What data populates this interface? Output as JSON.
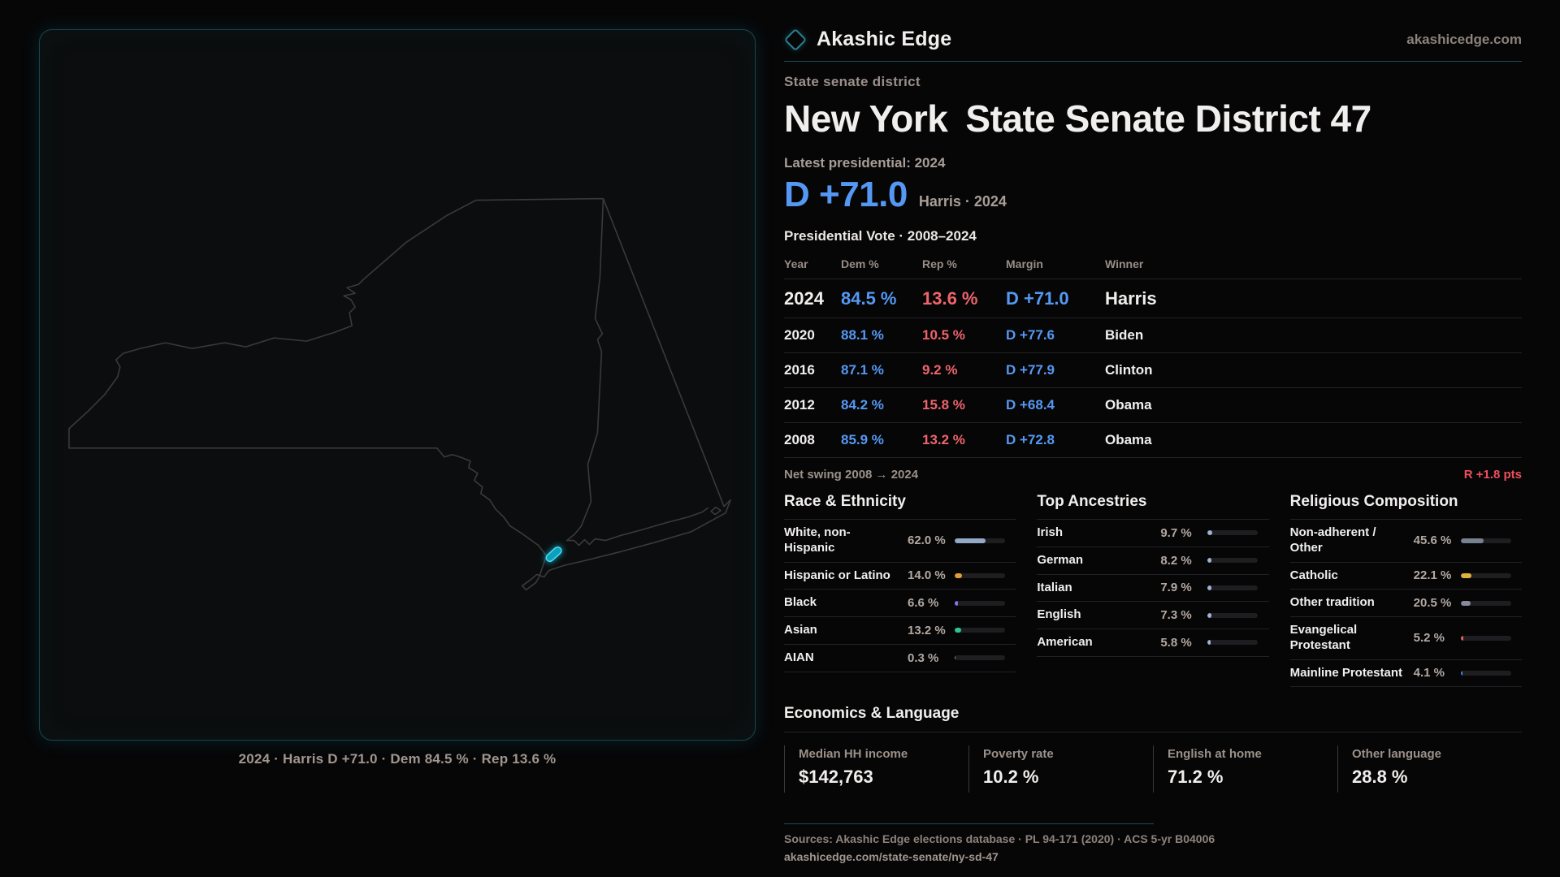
{
  "brand": {
    "name": "Akashic Edge",
    "domain": "akashicedge.com"
  },
  "map": {
    "caption": "2024 · Harris D +71.0 · Dem 84.5 % · Rep 13.6 %",
    "district_fill": "#0c9fbe",
    "district_stroke": "#49dff2",
    "outline_color": "#3a3a3d"
  },
  "header": {
    "eyebrow": "State senate district",
    "title_part1": "New York",
    "title_part2": "State Senate District 47"
  },
  "latest": {
    "label": "Latest presidential: 2024",
    "margin": "D +71.0",
    "winner_note": "Harris · 2024"
  },
  "table": {
    "title": "Presidential Vote · 2008–2024",
    "columns": [
      "Year",
      "Dem %",
      "Rep %",
      "Margin",
      "Winner"
    ],
    "rows": [
      {
        "year": "2024",
        "dem": "84.5 %",
        "rep": "13.6 %",
        "margin": "D +71.0",
        "winner": "Harris",
        "featured": true
      },
      {
        "year": "2020",
        "dem": "88.1 %",
        "rep": "10.5 %",
        "margin": "D +77.6",
        "winner": "Biden",
        "featured": false
      },
      {
        "year": "2016",
        "dem": "87.1 %",
        "rep": "9.2 %",
        "margin": "D +77.9",
        "winner": "Clinton",
        "featured": false
      },
      {
        "year": "2012",
        "dem": "84.2 %",
        "rep": "15.8 %",
        "margin": "D +68.4",
        "winner": "Obama",
        "featured": false
      },
      {
        "year": "2008",
        "dem": "85.9 %",
        "rep": "13.2 %",
        "margin": "D +72.8",
        "winner": "Obama",
        "featured": false
      }
    ]
  },
  "net_swing": {
    "label": "Net swing 2008 → 2024",
    "value": "R +1.8 pts"
  },
  "demographics": [
    {
      "title": "Race & Ethnicity",
      "rows": [
        {
          "label": "White, non-Hispanic",
          "value": "62.0 %",
          "pct": 62.0,
          "color": "#93a9c6"
        },
        {
          "label": "Hispanic or Latino",
          "value": "14.0 %",
          "pct": 14.0,
          "color": "#e39b35"
        },
        {
          "label": "Black",
          "value": "6.6 %",
          "pct": 6.6,
          "color": "#8674e8"
        },
        {
          "label": "Asian",
          "value": "13.2 %",
          "pct": 13.2,
          "color": "#2ec492"
        },
        {
          "label": "AIAN",
          "value": "0.3 %",
          "pct": 0.3,
          "color": "#8a94a0"
        }
      ]
    },
    {
      "title": "Top Ancestries",
      "rows": [
        {
          "label": "Irish",
          "value": "9.7 %",
          "pct": 9.7,
          "color": "#9db4d2"
        },
        {
          "label": "German",
          "value": "8.2 %",
          "pct": 8.2,
          "color": "#9db4d2"
        },
        {
          "label": "Italian",
          "value": "7.9 %",
          "pct": 7.9,
          "color": "#9db4d2"
        },
        {
          "label": "English",
          "value": "7.3 %",
          "pct": 7.3,
          "color": "#9db4d2"
        },
        {
          "label": "American",
          "value": "5.8 %",
          "pct": 5.8,
          "color": "#9db4d2"
        }
      ]
    },
    {
      "title": "Religious Composition",
      "rows": [
        {
          "label": "Non-adherent / Other",
          "value": "45.6 %",
          "pct": 45.6,
          "color": "#76828f"
        },
        {
          "label": "Catholic",
          "value": "22.1 %",
          "pct": 22.1,
          "color": "#ddb33c"
        },
        {
          "label": "Other tradition",
          "value": "20.5 %",
          "pct": 20.5,
          "color": "#848c9a"
        },
        {
          "label": "Evangelical Protestant",
          "value": "5.2 %",
          "pct": 5.2,
          "color": "#e55f64"
        },
        {
          "label": "Mainline Protestant",
          "value": "4.1 %",
          "pct": 4.1,
          "color": "#3f8fe0"
        }
      ]
    }
  ],
  "economics": {
    "title": "Economics & Language",
    "stats": [
      {
        "label": "Median HH income",
        "value": "$142,763"
      },
      {
        "label": "Poverty rate",
        "value": "10.2 %"
      },
      {
        "label": "English at home",
        "value": "71.2 %"
      },
      {
        "label": "Other language",
        "value": "28.8 %"
      }
    ]
  },
  "footer": {
    "sources": "Sources: Akashic Edge elections database · PL 94-171 (2020) · ACS 5-yr B04006",
    "slug": "akashicedge.com/state-senate/ny-sd-47"
  }
}
